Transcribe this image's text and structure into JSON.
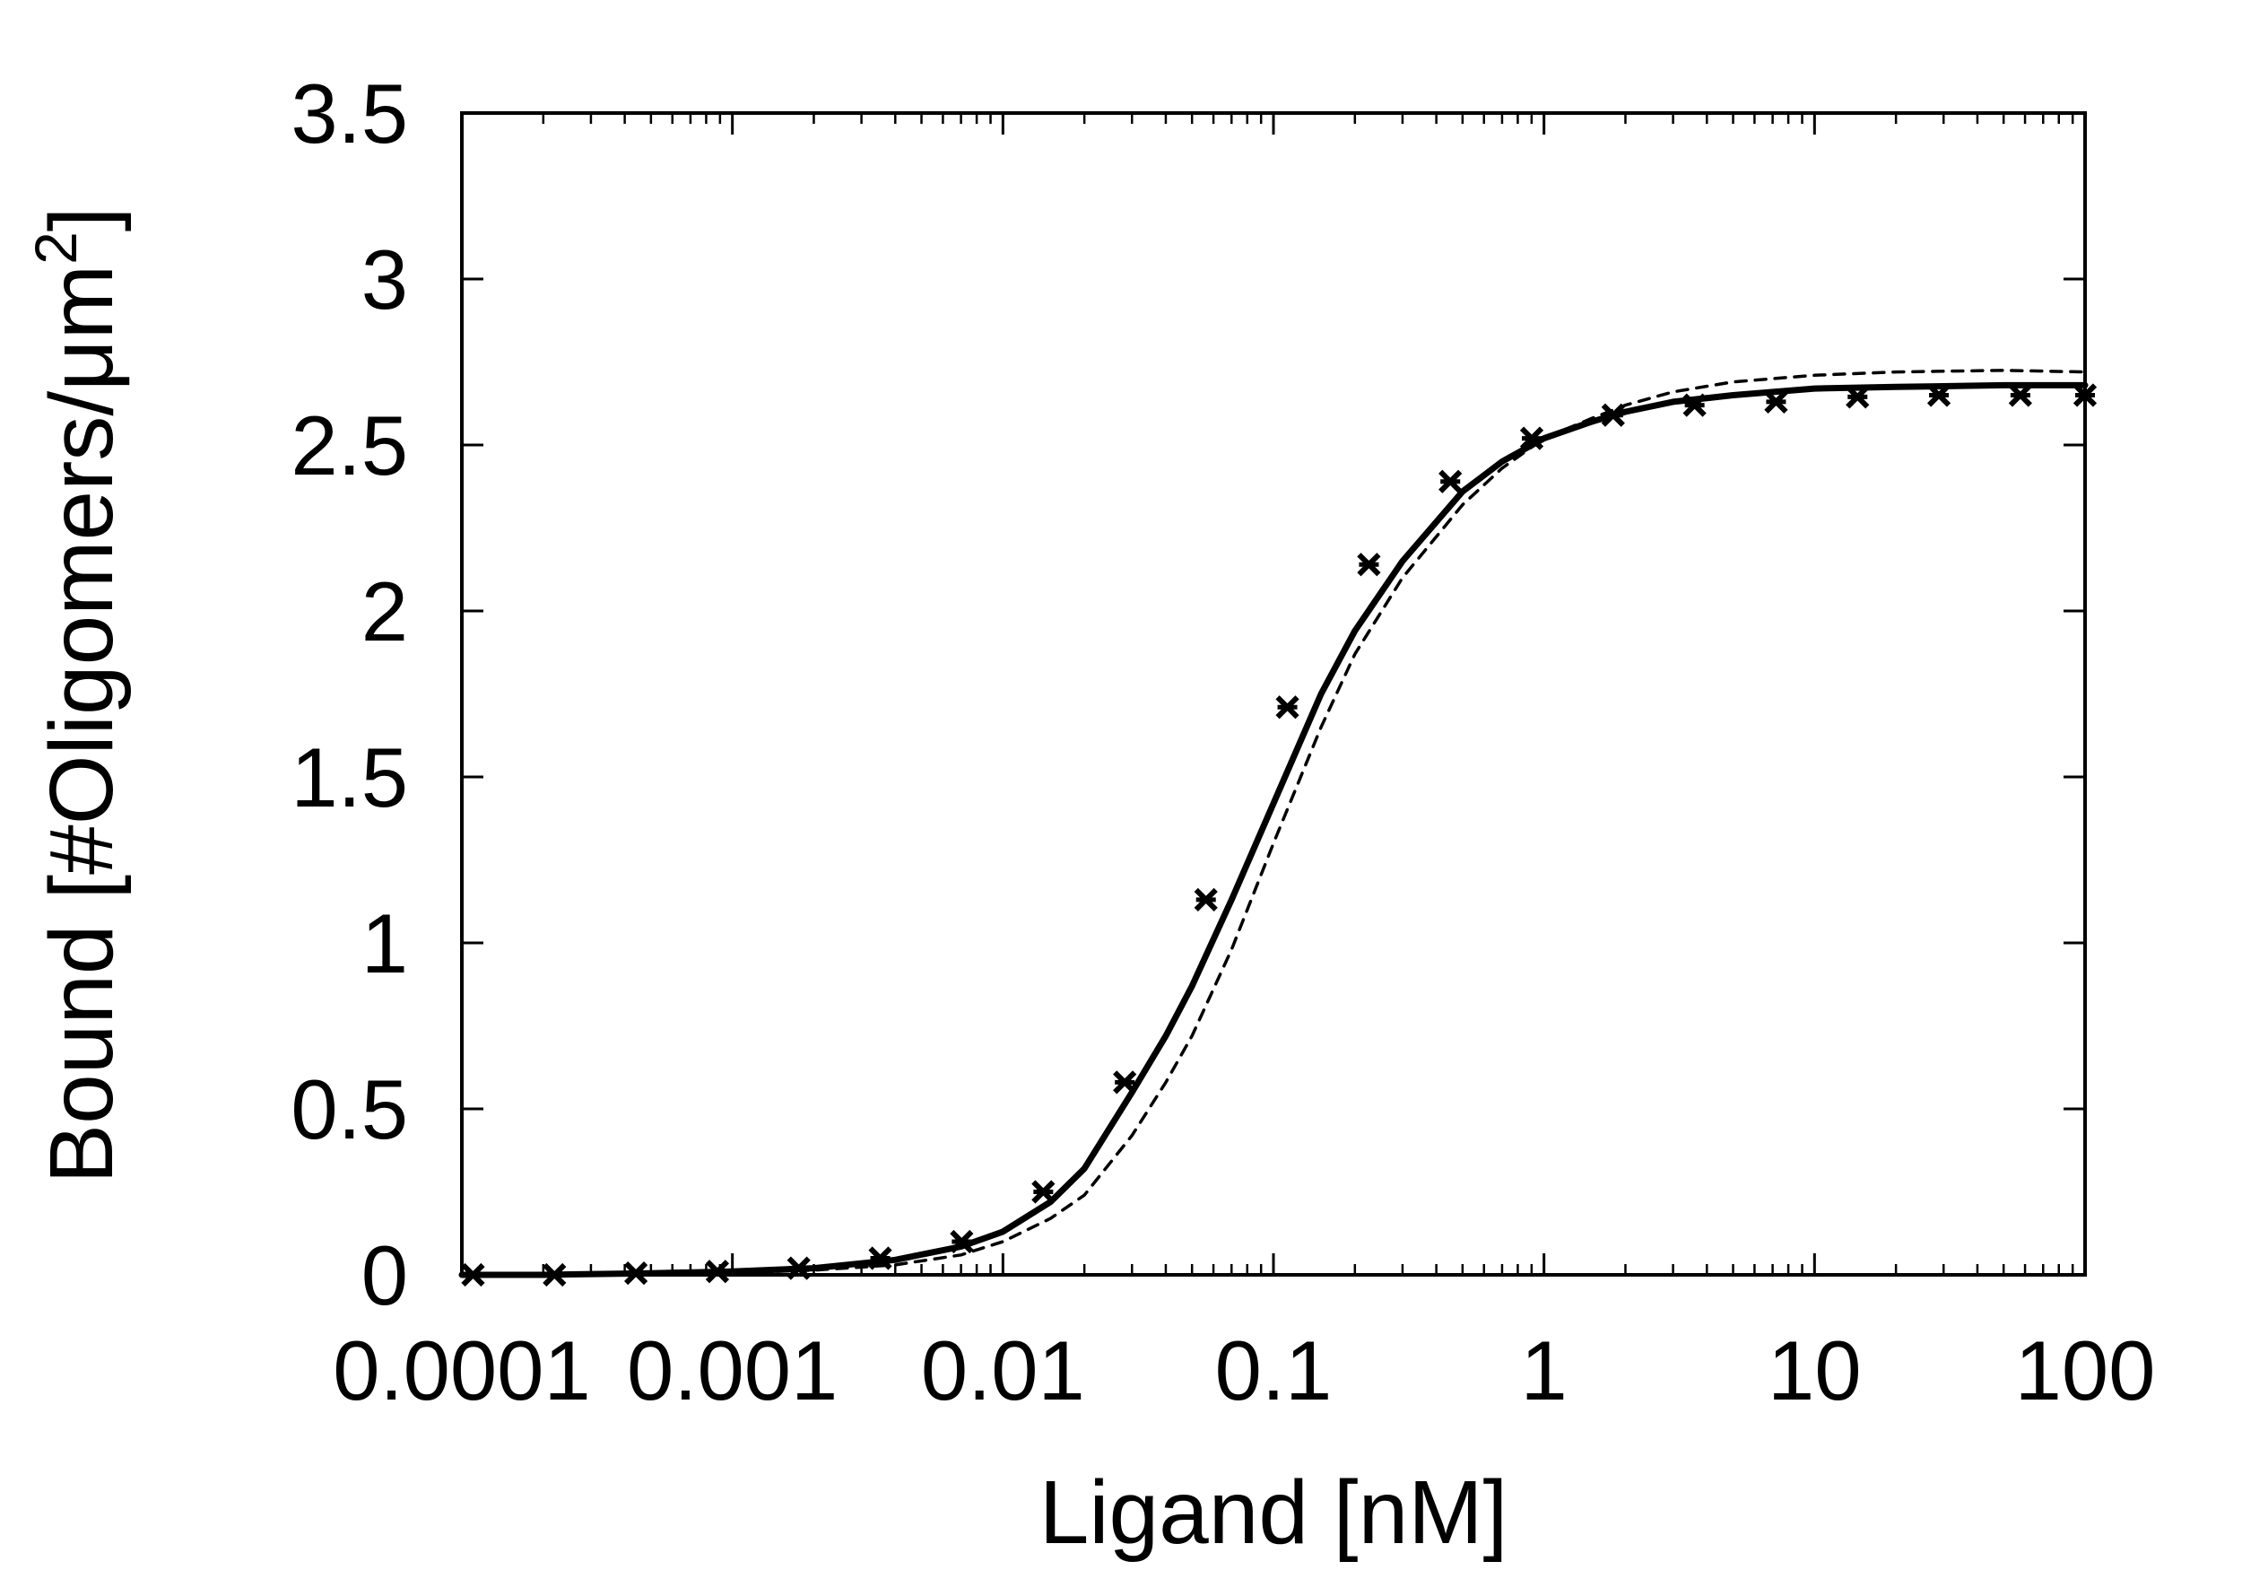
{
  "chart_data": {
    "type": "line",
    "title": "",
    "xlabel": "Ligand  [nM]",
    "ylabel": "Bound  [#Oligomers/μm²]",
    "ylabel_parts": {
      "main": "Bound  [#Oligomers/μm",
      "sup": "2",
      "close": "]"
    },
    "x_scale": "log",
    "xlim": [
      0.0001,
      100
    ],
    "ylim": [
      0,
      3.5
    ],
    "grid": false,
    "legend": "none",
    "x_ticks": [
      {
        "value": 0.0001,
        "label": "0.0001"
      },
      {
        "value": 0.001,
        "label": "0.001"
      },
      {
        "value": 0.01,
        "label": "0.01"
      },
      {
        "value": 0.1,
        "label": "0.1"
      },
      {
        "value": 1,
        "label": "1"
      },
      {
        "value": 10,
        "label": "10"
      },
      {
        "value": 100,
        "label": "100"
      }
    ],
    "y_ticks": [
      {
        "value": 0,
        "label": "0"
      },
      {
        "value": 0.5,
        "label": "0.5"
      },
      {
        "value": 1,
        "label": "1"
      },
      {
        "value": 1.5,
        "label": "1.5"
      },
      {
        "value": 2,
        "label": "2"
      },
      {
        "value": 2.5,
        "label": "2.5"
      },
      {
        "value": 3,
        "label": "3"
      },
      {
        "value": 3.5,
        "label": "3.5"
      }
    ],
    "series": [
      {
        "style": "markers",
        "marker": "x",
        "color": "#000000",
        "x": [
          0.00011,
          0.00022,
          0.00044,
          0.00088,
          0.00176,
          0.00352,
          0.00704,
          0.0141,
          0.0282,
          0.0563,
          0.1126,
          0.2253,
          0.4505,
          0.901,
          1.802,
          3.604,
          7.208,
          14.42,
          28.83,
          57.67,
          100
        ],
        "y": [
          0.0,
          0.0,
          0.005,
          0.01,
          0.02,
          0.05,
          0.1,
          0.25,
          0.58,
          1.13,
          1.71,
          2.14,
          2.39,
          2.52,
          2.59,
          2.62,
          2.63,
          2.645,
          2.65,
          2.65,
          2.65
        ]
      },
      {
        "style": "solid",
        "color": "#000000",
        "x": [
          0.0001,
          0.0002,
          0.0005,
          0.001,
          0.002,
          0.004,
          0.007,
          0.01,
          0.015,
          0.02,
          0.03,
          0.04,
          0.05,
          0.07,
          0.1,
          0.15,
          0.2,
          0.3,
          0.5,
          0.7,
          1,
          1.5,
          2,
          3,
          5,
          10,
          20,
          50,
          100
        ],
        "y": [
          0.0,
          0.0,
          0.005,
          0.01,
          0.02,
          0.045,
          0.085,
          0.13,
          0.22,
          0.32,
          0.55,
          0.72,
          0.87,
          1.13,
          1.42,
          1.75,
          1.94,
          2.15,
          2.36,
          2.45,
          2.52,
          2.57,
          2.6,
          2.63,
          2.65,
          2.67,
          2.675,
          2.68,
          2.68
        ]
      },
      {
        "style": "dashed",
        "color": "#000000",
        "x": [
          0.0001,
          0.0005,
          0.001,
          0.002,
          0.004,
          0.007,
          0.01,
          0.015,
          0.02,
          0.03,
          0.04,
          0.05,
          0.07,
          0.1,
          0.15,
          0.2,
          0.3,
          0.5,
          0.7,
          1,
          1.5,
          2,
          3,
          5,
          10,
          20,
          50,
          100
        ],
        "y": [
          0.0,
          0.003,
          0.006,
          0.014,
          0.03,
          0.06,
          0.1,
          0.17,
          0.24,
          0.42,
          0.58,
          0.72,
          0.98,
          1.3,
          1.65,
          1.87,
          2.1,
          2.32,
          2.43,
          2.52,
          2.58,
          2.62,
          2.66,
          2.69,
          2.71,
          2.72,
          2.725,
          2.72
        ]
      }
    ]
  }
}
